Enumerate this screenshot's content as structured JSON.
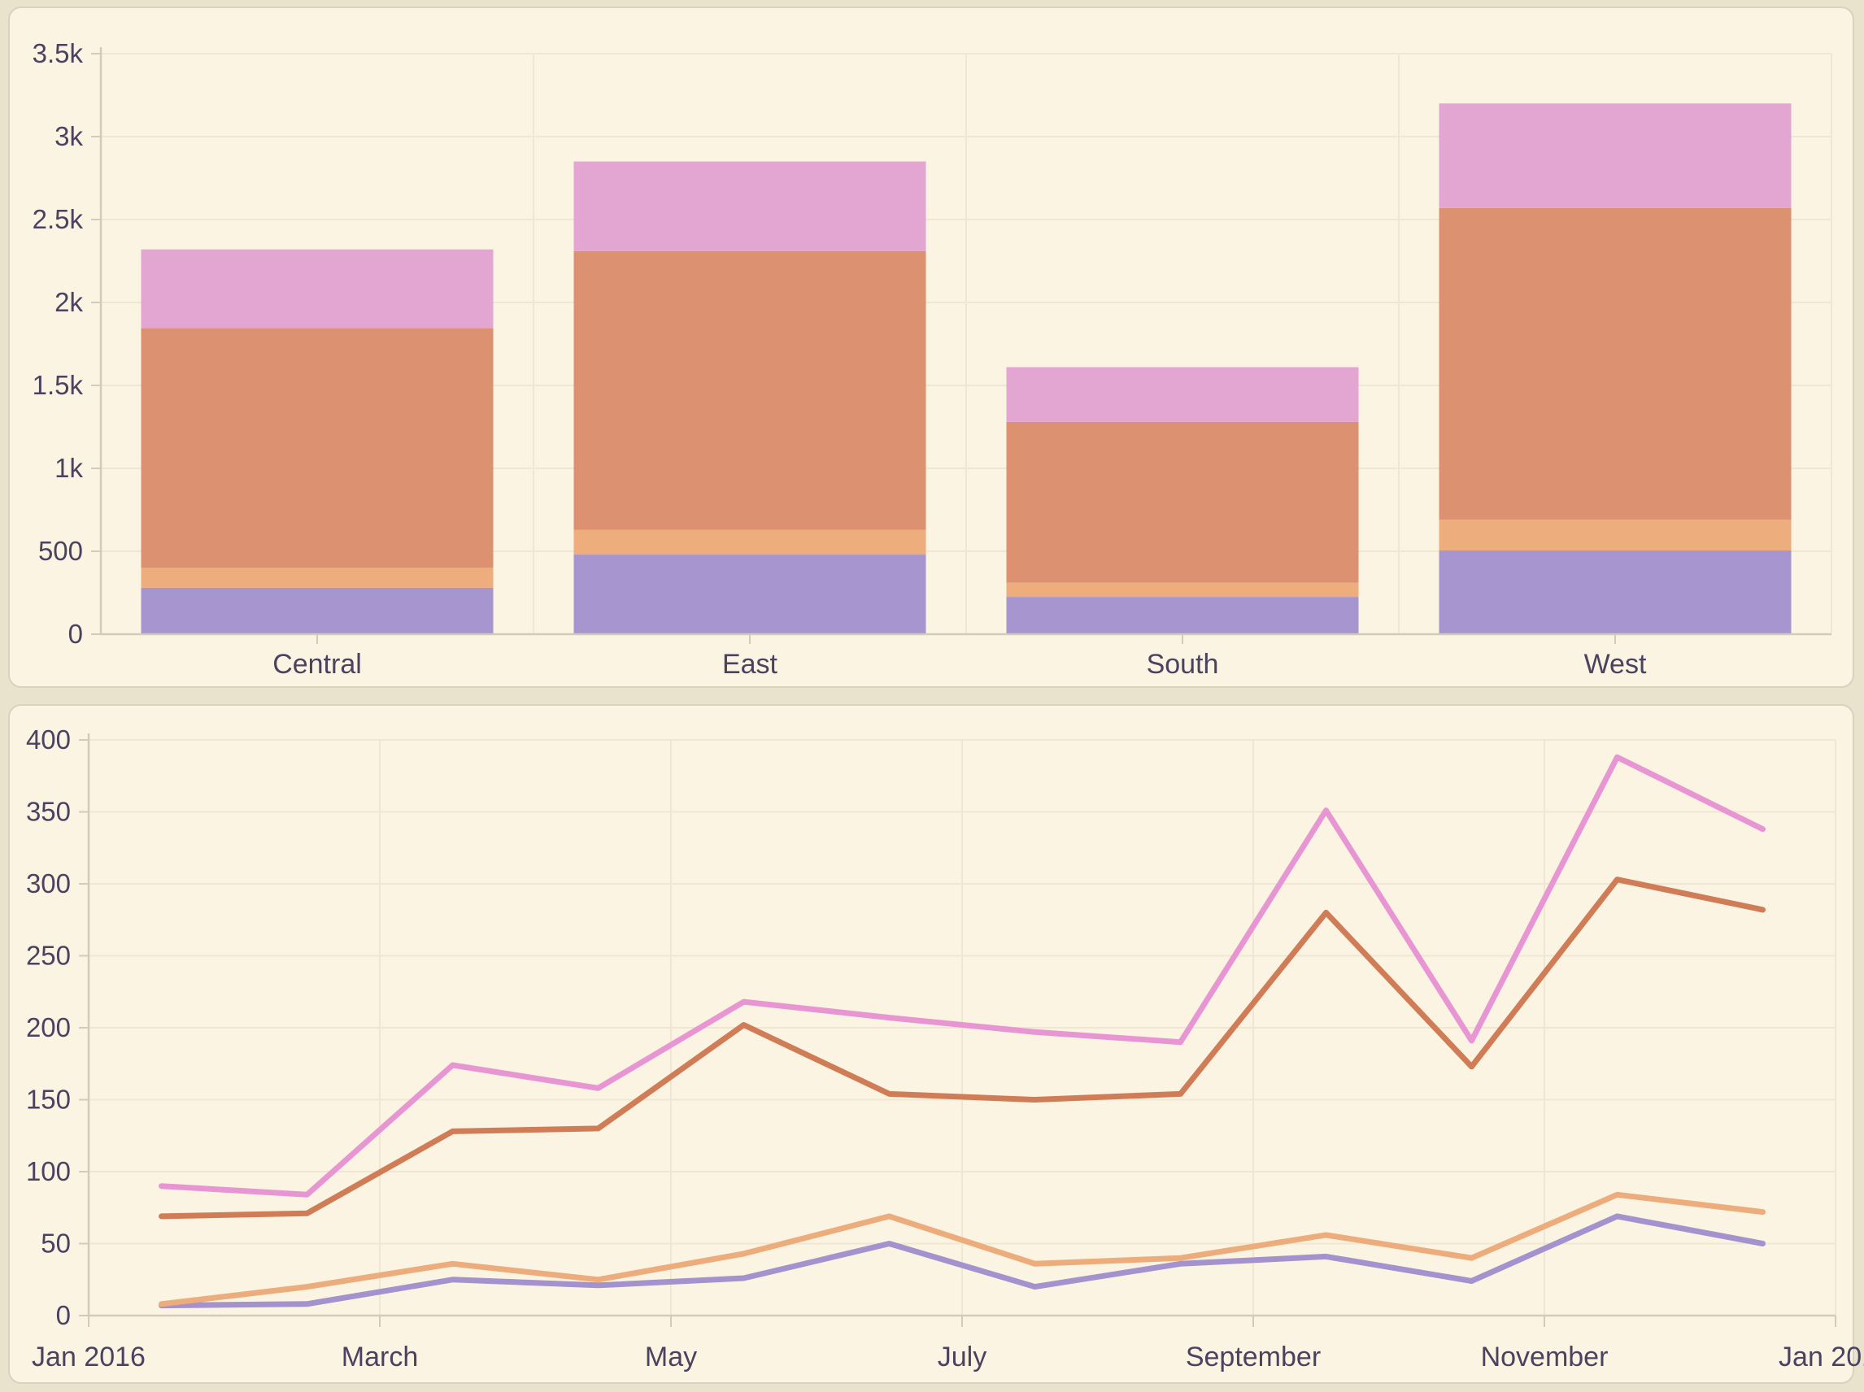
{
  "page": {
    "background": "#e9e2cd",
    "card_background": "#fbf4e2",
    "card_border": "#d9d2be",
    "grid_color": "#efe7d2",
    "axis_color": "#d2cbb8",
    "text_color": "#4b4260"
  },
  "chart_data": [
    {
      "type": "bar",
      "stacked": true,
      "title": "",
      "xlabel": "",
      "ylabel": "",
      "categories": [
        "Central",
        "East",
        "South",
        "West"
      ],
      "series": [
        {
          "name": "purple",
          "color": "#a695ce",
          "values": [
            280,
            480,
            225,
            505
          ]
        },
        {
          "name": "tan",
          "color": "#edad7d",
          "values": [
            120,
            150,
            85,
            185
          ]
        },
        {
          "name": "salmon",
          "color": "#dc9270",
          "values": [
            1445,
            1680,
            970,
            1880
          ]
        },
        {
          "name": "pink",
          "color": "#e3a6d3",
          "values": [
            475,
            540,
            330,
            630
          ]
        }
      ],
      "stack_totals": [
        2320,
        2850,
        1610,
        3200
      ],
      "ylim": [
        0,
        3500
      ],
      "y_tick_values": [
        0,
        500,
        1000,
        1500,
        2000,
        2500,
        3000,
        3500
      ],
      "y_tick_labels": [
        "0",
        "500",
        "1k",
        "1.5k",
        "2k",
        "2.5k",
        "3k",
        "3.5k"
      ],
      "grid": true,
      "legend": "none"
    },
    {
      "type": "line",
      "title": "",
      "xlabel": "",
      "ylabel": "",
      "x_months": [
        "Jan",
        "Feb",
        "Mar",
        "Apr",
        "May",
        "Jun",
        "Jul",
        "Aug",
        "Sep",
        "Oct",
        "Nov",
        "Dec"
      ],
      "x_axis_labels": [
        "Jan 2016",
        "March",
        "May",
        "July",
        "September",
        "November",
        "Jan 2017"
      ],
      "series": [
        {
          "name": "purple",
          "color": "#a392cd",
          "values": [
            7,
            8,
            25,
            21,
            26,
            50,
            20,
            36,
            41,
            24,
            69,
            50
          ]
        },
        {
          "name": "tan",
          "color": "#ecac7c",
          "values": [
            8,
            20,
            36,
            25,
            43,
            69,
            36,
            40,
            56,
            40,
            84,
            72
          ]
        },
        {
          "name": "orange",
          "color": "#d07c57",
          "values": [
            69,
            71,
            128,
            130,
            202,
            154,
            150,
            154,
            280,
            173,
            303,
            282
          ]
        },
        {
          "name": "pink",
          "color": "#e896d3",
          "values": [
            90,
            84,
            174,
            158,
            218,
            207,
            197,
            190,
            351,
            191,
            388,
            338
          ]
        }
      ],
      "ylim": [
        0,
        400
      ],
      "y_tick_values": [
        0,
        50,
        100,
        150,
        200,
        250,
        300,
        350,
        400
      ],
      "y_tick_labels": [
        "0",
        "50",
        "100",
        "150",
        "200",
        "250",
        "300",
        "350",
        "400"
      ],
      "grid": true,
      "legend": "none"
    }
  ]
}
